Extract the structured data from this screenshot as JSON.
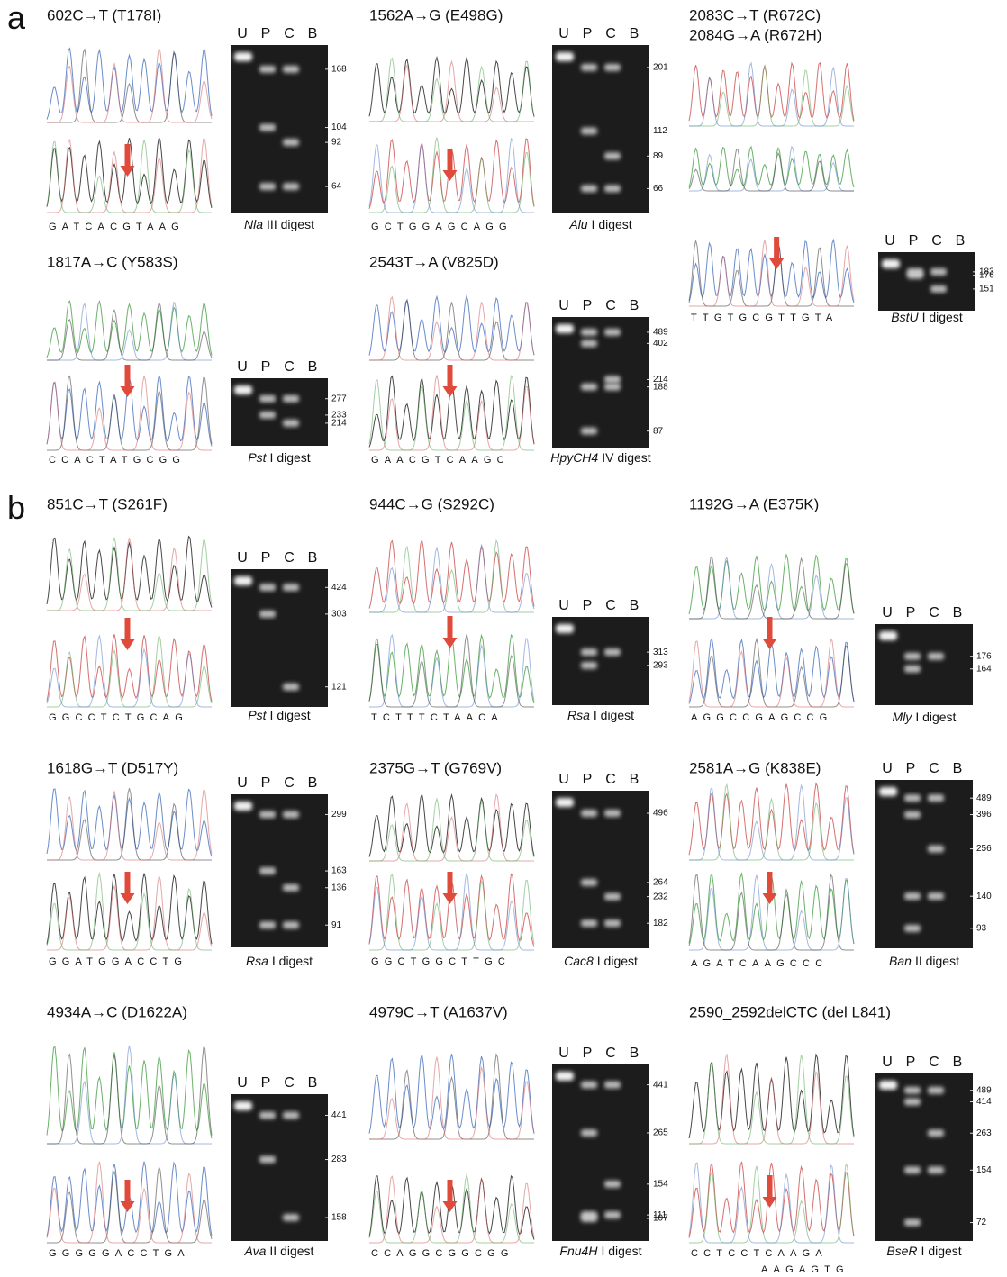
{
  "panel_labels": [
    "a",
    "b"
  ],
  "lane_labels": [
    "U",
    "P",
    "C",
    "B"
  ],
  "panels": [
    {
      "title": "602C→T (T178I)",
      "sequence": "GATCACGTAAG",
      "enzyme": "Nla",
      "digest": "III digest",
      "sizes": [
        168,
        104,
        92,
        64
      ]
    },
    {
      "title": "1562A→G (E498G)",
      "sequence": "GCTGGAGCAGG",
      "enzyme": "Alu",
      "digest": "I digest",
      "sizes": [
        201,
        112,
        89,
        66
      ]
    },
    {
      "title": "2083C→T (R672C)",
      "title2": "2084G→A (R672H)",
      "sequence": "TTGTGCGTTGTA",
      "enzyme": "BstU",
      "digest": "I digest",
      "sizes": [
        183,
        176,
        151
      ]
    },
    {
      "title": "1817A→C (Y583S)",
      "sequence": "CCACTATGCGG",
      "enzyme": "Pst",
      "digest": "I digest",
      "sizes": [
        277,
        233,
        214
      ]
    },
    {
      "title": "2543T→A (V825D)",
      "sequence": "GAACGTCAAGC",
      "enzyme": "HpyCH4",
      "digest": "IV digest",
      "sizes": [
        489,
        402,
        214,
        188,
        87
      ]
    },
    {
      "title": "851C→T (S261F)",
      "sequence": "GGCCTCTGCAG",
      "enzyme": "Pst",
      "digest": "I digest",
      "sizes": [
        424,
        303,
        121
      ]
    },
    {
      "title": "944C→G (S292C)",
      "sequence": "TCTTTCTAACA",
      "enzyme": "Rsa",
      "digest": "I digest",
      "sizes": [
        313,
        293
      ]
    },
    {
      "title": "1192G→A (E375K)",
      "sequence": "AGGCCGAGCCG",
      "enzyme": "Mly",
      "digest": "I digest",
      "sizes": [
        176,
        164
      ]
    },
    {
      "title": "1618G→T (D517Y)",
      "sequence": "GGATGGACCTG",
      "enzyme": "Rsa",
      "digest": "I digest",
      "sizes": [
        299,
        163,
        136,
        91
      ]
    },
    {
      "title": "2375G→T (G769V)",
      "sequence": "GGCTGGCTTGC",
      "enzyme": "Cac8",
      "digest": "I digest",
      "sizes": [
        496,
        264,
        232,
        182
      ]
    },
    {
      "title": "2581A→G (K838E)",
      "sequence": "AGATCAAGCCC",
      "enzyme": "Ban",
      "digest": "II digest",
      "sizes": [
        489,
        396,
        256,
        140,
        93
      ]
    },
    {
      "title": "4934A→C (D1622A)",
      "sequence": "GGGGGACCTGA",
      "enzyme": "Ava",
      "digest": "II digest",
      "sizes": [
        441,
        283,
        158
      ]
    },
    {
      "title": "4979C→T (A1637V)",
      "sequence": "CCAGGCGGCGG",
      "enzyme": "Fnu4H",
      "digest": "I digest",
      "sizes": [
        441,
        265,
        154,
        111,
        107
      ]
    },
    {
      "title": "2590_2592delCTC (del L841)",
      "sequence": "CCTCCTCAAGA",
      "sequence2": "AAGAGTG",
      "enzyme": "BseR",
      "digest": "I digest",
      "sizes": [
        489,
        414,
        263,
        154,
        72
      ]
    }
  ]
}
